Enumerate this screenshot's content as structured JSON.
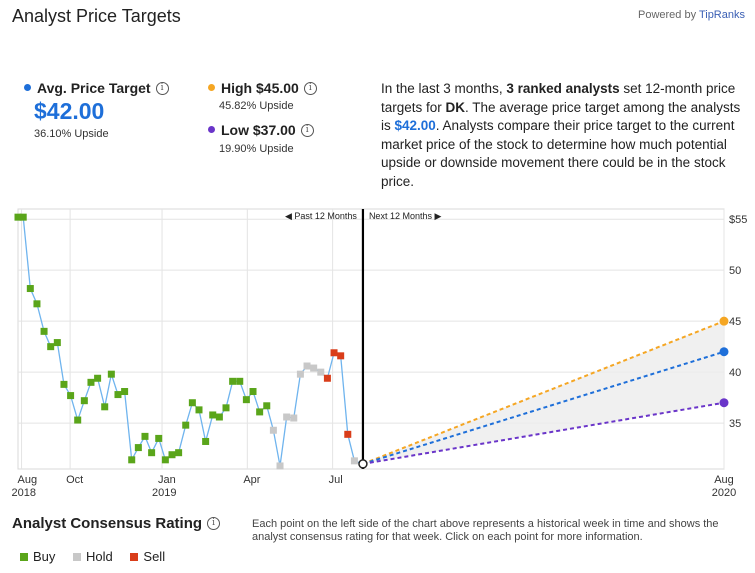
{
  "header": {
    "title": "Analyst Price Targets",
    "powered_prefix": "Powered by ",
    "powered_brand": "TipRanks"
  },
  "targets": {
    "avg": {
      "label": "Avg. Price Target",
      "value": "$42.00",
      "upside": "36.10% Upside",
      "color": "#1e6fd9"
    },
    "high": {
      "label": "High $45.00",
      "upside": "45.82% Upside",
      "color": "#f5a623"
    },
    "low": {
      "label": "Low $37.00",
      "upside": "19.90% Upside",
      "color": "#6a35c9"
    }
  },
  "description": {
    "part1": "In the last 3 months, ",
    "bold1": "3 ranked analysts",
    "part2": " set 12-month price targets for ",
    "ticker": "DK",
    "part3": ". The average price target among the analysts is ",
    "avg": "$42.00",
    "part4": ". Analysts compare their price target to the current market price of the stock to determine how much potential upside or downside movement there could be in the stock price."
  },
  "consensus": {
    "title": "Analyst Consensus Rating",
    "description": "Each point on the left side of the chart above represents a historical week in time and shows the analyst consensus rating for that week. Click on each point for more information.",
    "legend": [
      {
        "label": "Buy",
        "color": "#5aa51a"
      },
      {
        "label": "Hold",
        "color": "#c8c8c8"
      },
      {
        "label": "Sell",
        "color": "#d93d1a"
      }
    ]
  },
  "chart_data": {
    "type": "line",
    "past_label": "Past 12 Months",
    "next_label": "Next 12 Months",
    "y_ticks": [
      {
        "value": 55,
        "label": "$55"
      },
      {
        "value": 50,
        "label": "50"
      },
      {
        "value": 45,
        "label": "45"
      },
      {
        "value": 40,
        "label": "40"
      },
      {
        "value": 35,
        "label": "35"
      }
    ],
    "ylim": [
      30.5,
      56
    ],
    "x_ticks": [
      {
        "t": 0.75,
        "line1": "Aug",
        "line2": "2018"
      },
      {
        "t": 11.0,
        "line1": "Oct",
        "line2": ""
      },
      {
        "t": 30.4,
        "line1": "Jan",
        "line2": "2019"
      },
      {
        "t": 48.4,
        "line1": "Apr",
        "line2": ""
      },
      {
        "t": 66.4,
        "line1": "Jul",
        "line2": ""
      },
      {
        "t": 149.0,
        "line1": "Aug",
        "line2": "2020"
      }
    ],
    "xlim": [
      0,
      149.0
    ],
    "today_t": 72.8,
    "colors": {
      "buy": "#5aa51a",
      "hold": "#c8c8c8",
      "sell": "#d93d1a",
      "price_line": "#6fb4ee",
      "today_line": "#000000"
    },
    "price_series": [
      {
        "t": 0.0,
        "y": 55.2,
        "r": "buy"
      },
      {
        "t": 1.1,
        "y": 55.2,
        "r": "buy"
      },
      {
        "t": 2.6,
        "y": 48.2,
        "r": "buy"
      },
      {
        "t": 4.0,
        "y": 46.7,
        "r": "buy"
      },
      {
        "t": 5.5,
        "y": 44.0,
        "r": "buy"
      },
      {
        "t": 6.9,
        "y": 42.5,
        "r": "buy"
      },
      {
        "t": 8.3,
        "y": 42.9,
        "r": "buy"
      },
      {
        "t": 9.7,
        "y": 38.8,
        "r": "buy"
      },
      {
        "t": 11.1,
        "y": 37.7,
        "r": "buy"
      },
      {
        "t": 12.6,
        "y": 35.3,
        "r": "buy"
      },
      {
        "t": 14.0,
        "y": 37.2,
        "r": "buy"
      },
      {
        "t": 15.4,
        "y": 39.0,
        "r": "buy"
      },
      {
        "t": 16.8,
        "y": 39.4,
        "r": "buy"
      },
      {
        "t": 18.3,
        "y": 36.6,
        "r": "buy"
      },
      {
        "t": 19.7,
        "y": 39.8,
        "r": "buy"
      },
      {
        "t": 21.1,
        "y": 37.8,
        "r": "buy"
      },
      {
        "t": 22.5,
        "y": 38.1,
        "r": "buy"
      },
      {
        "t": 24.0,
        "y": 31.4,
        "r": "buy"
      },
      {
        "t": 25.4,
        "y": 32.6,
        "r": "buy"
      },
      {
        "t": 26.8,
        "y": 33.7,
        "r": "buy"
      },
      {
        "t": 28.2,
        "y": 32.1,
        "r": "buy"
      },
      {
        "t": 29.7,
        "y": 33.5,
        "r": "buy"
      },
      {
        "t": 31.1,
        "y": 31.4,
        "r": "buy"
      },
      {
        "t": 32.5,
        "y": 31.9,
        "r": "buy"
      },
      {
        "t": 33.9,
        "y": 32.1,
        "r": "buy"
      },
      {
        "t": 35.4,
        "y": 34.8,
        "r": "buy"
      },
      {
        "t": 36.8,
        "y": 37.0,
        "r": "buy"
      },
      {
        "t": 38.2,
        "y": 36.3,
        "r": "buy"
      },
      {
        "t": 39.6,
        "y": 33.2,
        "r": "buy"
      },
      {
        "t": 41.1,
        "y": 35.8,
        "r": "buy"
      },
      {
        "t": 42.5,
        "y": 35.6,
        "r": "buy"
      },
      {
        "t": 43.9,
        "y": 36.5,
        "r": "buy"
      },
      {
        "t": 45.3,
        "y": 39.1,
        "r": "buy"
      },
      {
        "t": 46.8,
        "y": 39.1,
        "r": "buy"
      },
      {
        "t": 48.2,
        "y": 37.3,
        "r": "buy"
      },
      {
        "t": 49.6,
        "y": 38.1,
        "r": "buy"
      },
      {
        "t": 51.0,
        "y": 36.1,
        "r": "buy"
      },
      {
        "t": 52.5,
        "y": 36.7,
        "r": "buy"
      },
      {
        "t": 53.9,
        "y": 34.3,
        "r": "hold"
      },
      {
        "t": 55.3,
        "y": 30.8,
        "r": "hold"
      },
      {
        "t": 56.7,
        "y": 35.6,
        "r": "hold"
      },
      {
        "t": 58.2,
        "y": 35.5,
        "r": "hold"
      },
      {
        "t": 59.6,
        "y": 39.8,
        "r": "hold"
      },
      {
        "t": 61.0,
        "y": 40.6,
        "r": "hold"
      },
      {
        "t": 62.4,
        "y": 40.4,
        "r": "hold"
      },
      {
        "t": 63.9,
        "y": 40.0,
        "r": "hold"
      },
      {
        "t": 65.3,
        "y": 39.4,
        "r": "sell"
      },
      {
        "t": 66.7,
        "y": 41.9,
        "r": "sell"
      },
      {
        "t": 68.1,
        "y": 41.6,
        "r": "sell"
      },
      {
        "t": 69.6,
        "y": 33.9,
        "r": "sell"
      },
      {
        "t": 71.0,
        "y": 31.3,
        "r": "hold"
      }
    ],
    "current_price": {
      "t": 72.8,
      "y": 31.0
    },
    "projections": [
      {
        "name": "High",
        "value": 45.0,
        "color": "#f5a623"
      },
      {
        "name": "Average",
        "value": 42.0,
        "color": "#1e6fd9"
      },
      {
        "name": "Low",
        "value": 37.0,
        "color": "#6a35c9"
      }
    ]
  }
}
